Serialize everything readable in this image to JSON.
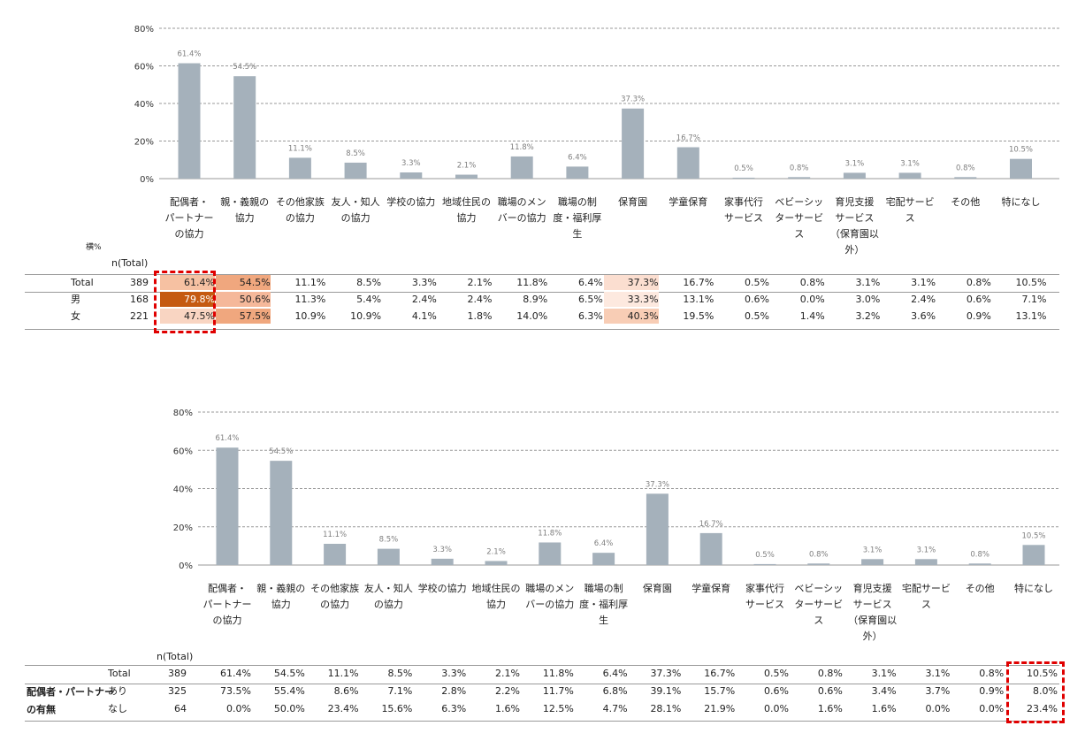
{
  "categories": [
    "配偶者・パートナーの協力",
    "親・義親の協力",
    "その他家族の協力",
    "友人・知人の協力",
    "学校の協力",
    "地域住民の協力",
    "職場のメンバーの協力",
    "職場の制度・福利厚生",
    "保育園",
    "学童保育",
    "家事代行サービス",
    "ベビーシッターサービス",
    "育児支援サービス（保育園以外）",
    "宅配サービス",
    "その他",
    "特になし"
  ],
  "category_lines": [
    [
      "配偶者・",
      "パートナー",
      "の協力"
    ],
    [
      "親・義親の",
      "協力"
    ],
    [
      "その他家族",
      "の協力"
    ],
    [
      "友人・知人",
      "の協力"
    ],
    [
      "学校の協力"
    ],
    [
      "地域住民の",
      "協力"
    ],
    [
      "職場のメン",
      "バーの協力"
    ],
    [
      "職場の制",
      "度・福利厚",
      "生"
    ],
    [
      "保育園"
    ],
    [
      "学童保育"
    ],
    [
      "家事代行",
      "サービス"
    ],
    [
      "ベビーシッ",
      "ターサービ",
      "ス"
    ],
    [
      "育児支援",
      "サービス",
      "（保育園以",
      "外）"
    ],
    [
      "宅配サービ",
      "ス"
    ],
    [
      "その他"
    ],
    [
      "特になし"
    ]
  ],
  "chart_data": [
    {
      "type": "bar",
      "categories": [
        "配偶者・パートナーの協力",
        "親・義親の協力",
        "その他家族の協力",
        "友人・知人の協力",
        "学校の協力",
        "地域住民の協力",
        "職場のメンバーの協力",
        "職場の制度・福利厚生",
        "保育園",
        "学童保育",
        "家事代行サービス",
        "ベビーシッターサービス",
        "育児支援サービス（保育園以外）",
        "宅配サービス",
        "その他",
        "特になし"
      ],
      "values": [
        61.4,
        54.5,
        11.1,
        8.5,
        3.3,
        2.1,
        11.8,
        6.4,
        37.3,
        16.7,
        0.5,
        0.8,
        3.1,
        3.1,
        0.8,
        10.5
      ],
      "data_labels": [
        "61.4%",
        "54.5%",
        "11.1%",
        "8.5%",
        "3.3%",
        "2.1%",
        "11.8%",
        "6.4%",
        "37.3%",
        "16.7%",
        "0.5%",
        "0.8%",
        "3.1%",
        "3.1%",
        "0.8%",
        "10.5%"
      ],
      "ylim": [
        0,
        80
      ],
      "yticks": [
        "0%",
        "20%",
        "40%",
        "60%",
        "80%"
      ],
      "grid": true,
      "bar_color": "#a5b1bb"
    },
    {
      "type": "bar",
      "categories": [
        "配偶者・パートナーの協力",
        "親・義親の協力",
        "その他家族の協力",
        "友人・知人の協力",
        "学校の協力",
        "地域住民の協力",
        "職場のメンバーの協力",
        "職場の制度・福利厚生",
        "保育園",
        "学童保育",
        "家事代行サービス",
        "ベビーシッターサービス",
        "育児支援サービス（保育園以外）",
        "宅配サービス",
        "その他",
        "特になし"
      ],
      "values": [
        61.4,
        54.5,
        11.1,
        8.5,
        3.3,
        2.1,
        11.8,
        6.4,
        37.3,
        16.7,
        0.5,
        0.8,
        3.1,
        3.1,
        0.8,
        10.5
      ],
      "data_labels": [
        "61.4%",
        "54.5%",
        "11.1%",
        "8.5%",
        "3.3%",
        "2.1%",
        "11.8%",
        "6.4%",
        "37.3%",
        "16.7%",
        "0.5%",
        "0.8%",
        "3.1%",
        "3.1%",
        "0.8%",
        "10.5%"
      ],
      "ylim": [
        0,
        80
      ],
      "yticks": [
        "0%",
        "20%",
        "40%",
        "60%",
        "80%"
      ],
      "grid": true,
      "bar_color": "#a5b1bb"
    }
  ],
  "table1": {
    "yoko_label": "横%",
    "n_header": "n(Total)",
    "rows": [
      {
        "label": "Total",
        "n": "389",
        "cells": [
          "61.4%",
          "54.5%",
          "11.1%",
          "8.5%",
          "3.3%",
          "2.1%",
          "11.8%",
          "6.4%",
          "37.3%",
          "16.7%",
          "0.5%",
          "0.8%",
          "3.1%",
          "3.1%",
          "0.8%",
          "10.5%"
        ],
        "bg": [
          "#f6c1a2",
          "#f0a77e",
          "",
          "",
          "",
          "",
          "",
          "",
          "#fbded0",
          "",
          "",
          "",
          "",
          "",
          "",
          ""
        ],
        "fg": [
          "",
          "",
          "",
          "",
          "",
          "",
          "",
          "",
          "",
          "",
          "",
          "",
          "",
          "",
          "",
          ""
        ]
      },
      {
        "label": "男",
        "n": "168",
        "cells": [
          "79.8%",
          "50.6%",
          "11.3%",
          "5.4%",
          "2.4%",
          "2.4%",
          "8.9%",
          "6.5%",
          "33.3%",
          "13.1%",
          "0.6%",
          "0.0%",
          "3.0%",
          "2.4%",
          "0.6%",
          "7.1%"
        ],
        "bg": [
          "#c55a11",
          "#f5b89a",
          "",
          "",
          "",
          "",
          "",
          "",
          "#fde9df",
          "",
          "",
          "",
          "",
          "",
          "",
          ""
        ],
        "fg": [
          "#ffffff",
          "",
          "",
          "",
          "",
          "",
          "",
          "",
          "",
          "",
          "",
          "",
          "",
          "",
          "",
          ""
        ]
      },
      {
        "label": "女",
        "n": "221",
        "cells": [
          "47.5%",
          "57.5%",
          "10.9%",
          "10.9%",
          "4.1%",
          "1.8%",
          "14.0%",
          "6.3%",
          "40.3%",
          "19.5%",
          "0.5%",
          "1.4%",
          "3.2%",
          "3.6%",
          "0.9%",
          "13.1%"
        ],
        "bg": [
          "#f9d5c2",
          "#f0a77e",
          "",
          "",
          "",
          "",
          "",
          "",
          "#f8cdb5",
          "",
          "",
          "",
          "",
          "",
          "",
          ""
        ],
        "fg": [
          "",
          "",
          "",
          "",
          "",
          "",
          "",
          "",
          "",
          "",
          "",
          "",
          "",
          "",
          "",
          ""
        ]
      }
    ]
  },
  "table2": {
    "n_header": "n(Total)",
    "group_label_lines": [
      "配偶者・パートナー",
      "の有無"
    ],
    "rows": [
      {
        "label": "Total",
        "n": "389",
        "cells": [
          "61.4%",
          "54.5%",
          "11.1%",
          "8.5%",
          "3.3%",
          "2.1%",
          "11.8%",
          "6.4%",
          "37.3%",
          "16.7%",
          "0.5%",
          "0.8%",
          "3.1%",
          "3.1%",
          "0.8%",
          "10.5%"
        ]
      },
      {
        "label": "あり",
        "n": "325",
        "cells": [
          "73.5%",
          "55.4%",
          "8.6%",
          "7.1%",
          "2.8%",
          "2.2%",
          "11.7%",
          "6.8%",
          "39.1%",
          "15.7%",
          "0.6%",
          "0.6%",
          "3.4%",
          "3.7%",
          "0.9%",
          "8.0%"
        ]
      },
      {
        "label": "なし",
        "n": "64",
        "cells": [
          "0.0%",
          "50.0%",
          "23.4%",
          "15.6%",
          "6.3%",
          "1.6%",
          "12.5%",
          "4.7%",
          "28.1%",
          "21.9%",
          "0.0%",
          "1.6%",
          "1.6%",
          "0.0%",
          "0.0%",
          "23.4%"
        ]
      }
    ]
  }
}
